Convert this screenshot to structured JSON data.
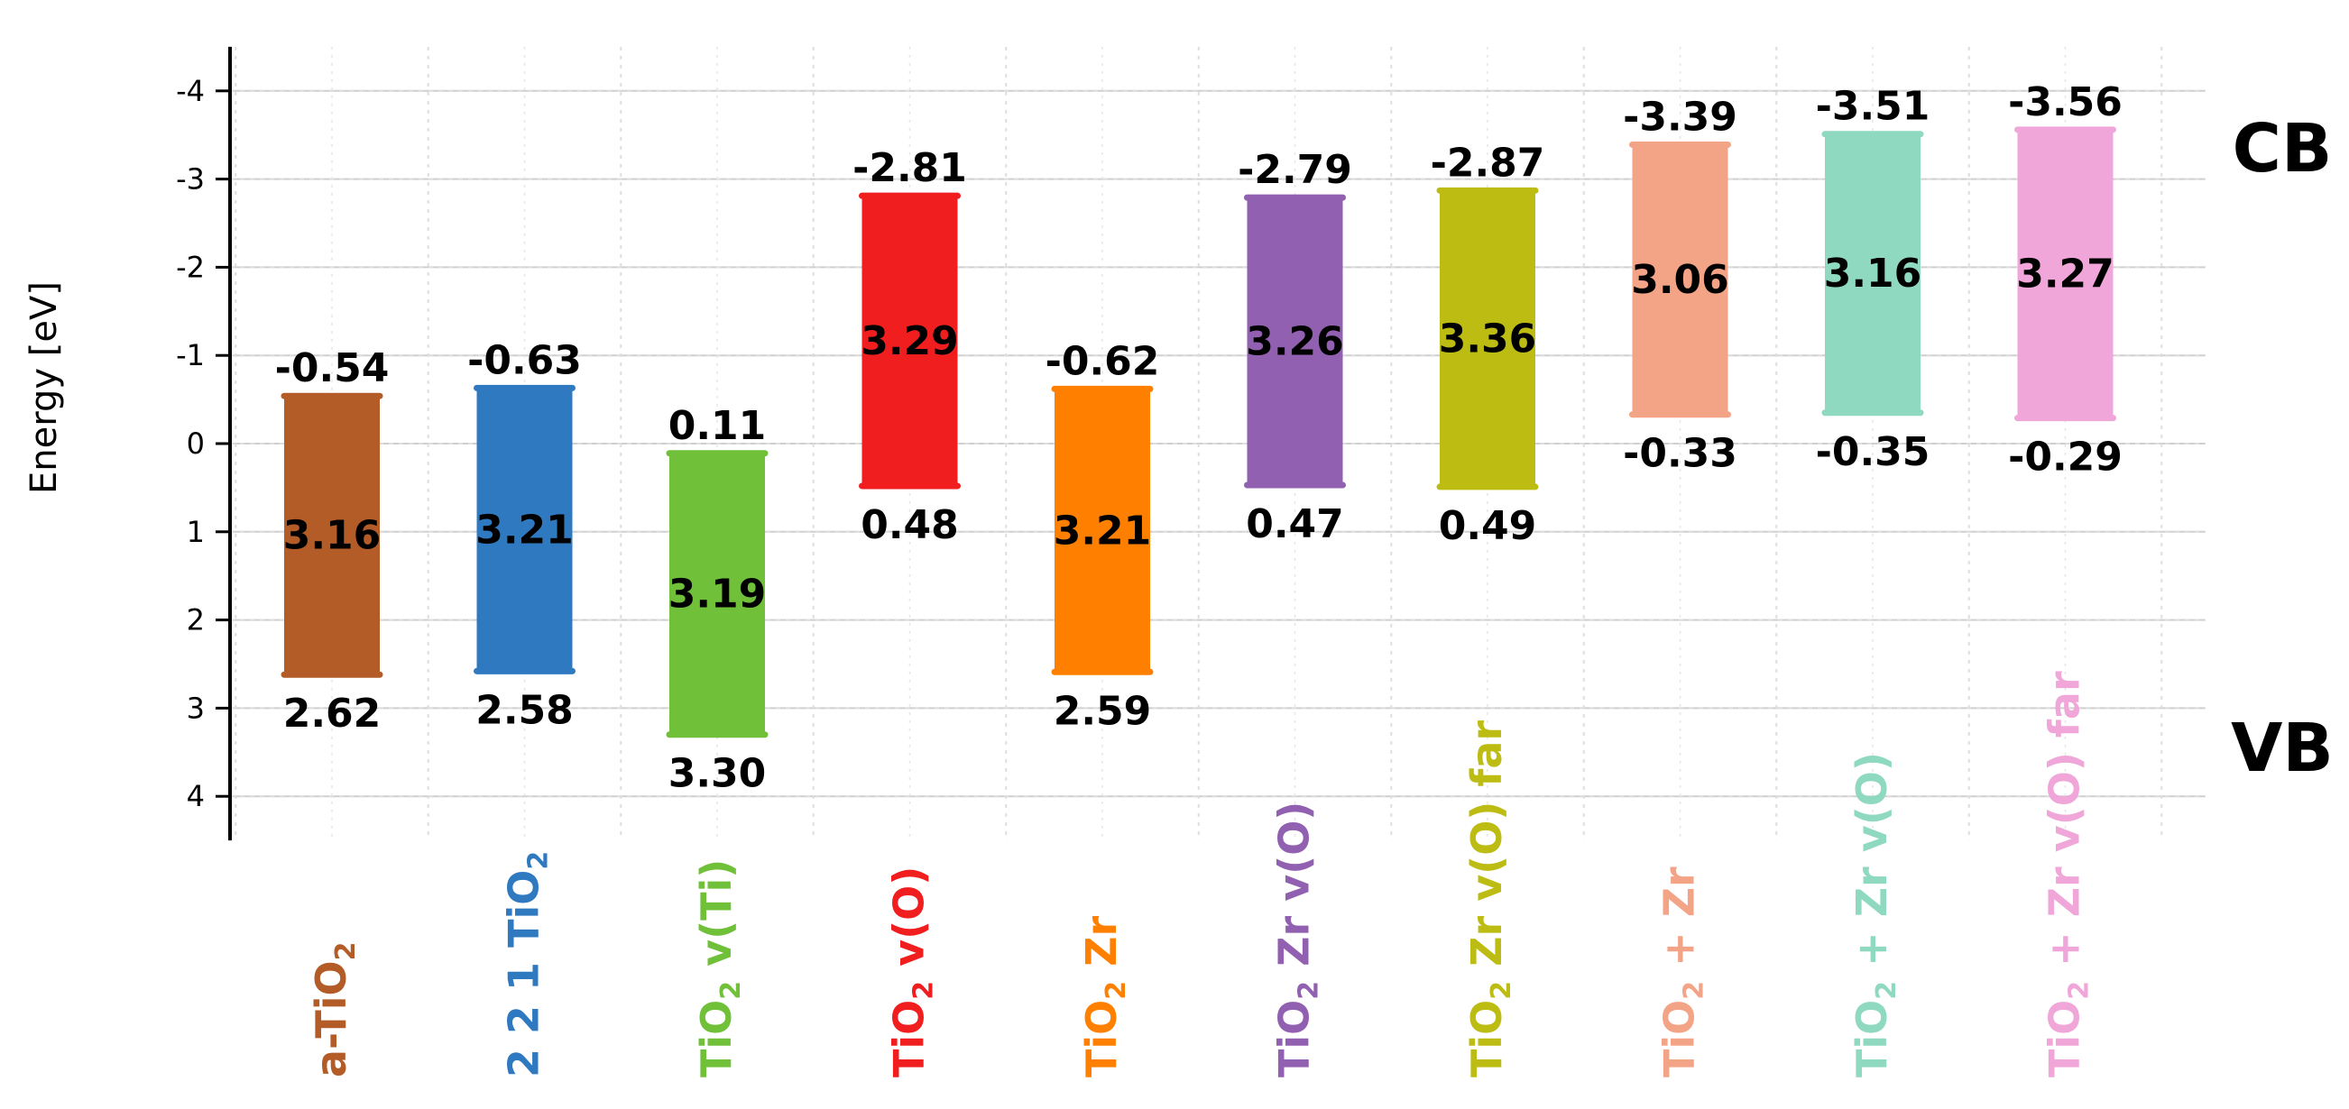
{
  "chart_data": {
    "type": "bar",
    "ylabel": "Energy [eV]",
    "ylim": [
      -4.5,
      4.5
    ],
    "y_inverted": true,
    "yticks": [
      -4,
      -3,
      -2,
      -1,
      0,
      1,
      2,
      3,
      4
    ],
    "grid": true,
    "band_labels": {
      "top": "CB",
      "bottom": "VB"
    },
    "bars": [
      {
        "color": "#b35c28",
        "label": {
          "base": "a-TiO",
          "sub": "2",
          "rest": ""
        },
        "cb": -0.54,
        "vb": 2.62,
        "gap": "3.16",
        "cb_text": "-0.54",
        "vb_text": "2.62"
      },
      {
        "color": "#2e79c0",
        "label": {
          "base": "2 2 1 TiO",
          "sub": "2",
          "rest": ""
        },
        "cb": -0.63,
        "vb": 2.58,
        "gap": "3.21",
        "cb_text": "-0.63",
        "vb_text": "2.58"
      },
      {
        "color": "#70c03a",
        "label": {
          "base": "TiO",
          "sub": "2",
          "rest": " v(Ti)"
        },
        "cb": 0.11,
        "vb": 3.3,
        "gap": "3.19",
        "cb_text": "0.11",
        "vb_text": "3.30"
      },
      {
        "color": "#f01e1e",
        "label": {
          "base": "TiO",
          "sub": "2",
          "rest": " v(O)"
        },
        "cb": -2.81,
        "vb": 0.48,
        "gap": "3.29",
        "cb_text": "-2.81",
        "vb_text": "0.48"
      },
      {
        "color": "#ff8000",
        "label": {
          "base": "TiO",
          "sub": "2",
          "rest": " Zr"
        },
        "cb": -0.62,
        "vb": 2.59,
        "gap": "3.21",
        "cb_text": "-0.62",
        "vb_text": "2.59"
      },
      {
        "color": "#9160b0",
        "label": {
          "base": "TiO",
          "sub": "2",
          "rest": " Zr v(O)"
        },
        "cb": -2.79,
        "vb": 0.47,
        "gap": "3.26",
        "cb_text": "-2.79",
        "vb_text": "0.47"
      },
      {
        "color": "#bcbc12",
        "label": {
          "base": "TiO",
          "sub": "2",
          "rest": " Zr v(O) far"
        },
        "cb": -2.87,
        "vb": 0.49,
        "gap": "3.36",
        "cb_text": "-2.87",
        "vb_text": "0.49"
      },
      {
        "color": "#f3a486",
        "label": {
          "base": "TiO",
          "sub": "2",
          "rest": " + Zr"
        },
        "cb": -3.39,
        "vb": -0.33,
        "gap": "3.06",
        "cb_text": "-3.39",
        "vb_text": "-0.33"
      },
      {
        "color": "#8ed9c0",
        "label": {
          "base": "TiO",
          "sub": "2",
          "rest": " + Zr v(O)"
        },
        "cb": -3.51,
        "vb": -0.35,
        "gap": "3.16",
        "cb_text": "-3.51",
        "vb_text": "-0.35"
      },
      {
        "color": "#f0a6d8",
        "label": {
          "base": "TiO",
          "sub": "2",
          "rest": " + Zr v(O) far"
        },
        "cb": -3.56,
        "vb": -0.29,
        "gap": "3.27",
        "cb_text": "-3.56",
        "vb_text": "-0.29"
      }
    ]
  }
}
